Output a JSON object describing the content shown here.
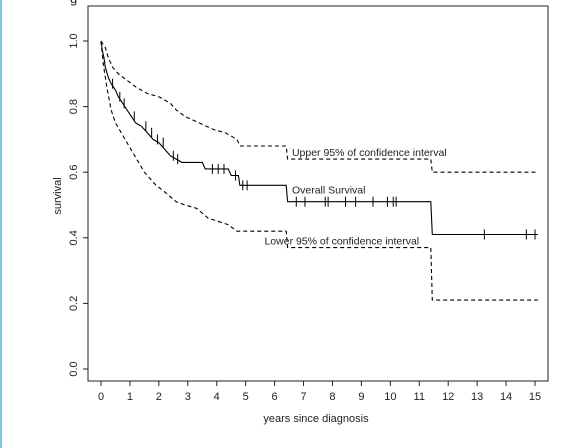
{
  "page": {
    "top_cut_text": "g"
  },
  "chart_data": {
    "type": "line",
    "title": "",
    "xlabel": "years since diagnosis",
    "ylabel": "survival",
    "xlim": [
      0,
      15
    ],
    "ylim": [
      0,
      1
    ],
    "x_ticks": [
      0,
      1,
      2,
      3,
      4,
      5,
      6,
      7,
      8,
      9,
      10,
      11,
      12,
      13,
      14,
      15
    ],
    "x_tick_labels": [
      "0",
      "1",
      "2",
      "3",
      "4",
      "5",
      "6",
      "7",
      "8",
      "9",
      "10",
      "11",
      "12",
      "13",
      "14",
      "15"
    ],
    "y_ticks": [
      0.0,
      0.2,
      0.4,
      0.6,
      0.8,
      1.0
    ],
    "y_tick_labels": [
      "0.0",
      "0.2",
      "0.4",
      "0.6",
      "0.8",
      "1.0"
    ],
    "grid": false,
    "line_color": "#000000",
    "series": [
      {
        "name": "Overall Survival",
        "style": "solid",
        "points": [
          [
            0,
            1.0
          ],
          [
            0.05,
            0.97
          ],
          [
            0.1,
            0.95
          ],
          [
            0.15,
            0.92
          ],
          [
            0.25,
            0.89
          ],
          [
            0.35,
            0.87
          ],
          [
            0.5,
            0.85
          ],
          [
            0.6,
            0.83
          ],
          [
            0.75,
            0.81
          ],
          [
            0.9,
            0.79
          ],
          [
            1.05,
            0.77
          ],
          [
            1.2,
            0.75
          ],
          [
            1.4,
            0.74
          ],
          [
            1.6,
            0.72
          ],
          [
            1.8,
            0.7
          ],
          [
            2.0,
            0.69
          ],
          [
            2.2,
            0.67
          ],
          [
            2.4,
            0.65
          ],
          [
            2.6,
            0.64
          ],
          [
            2.8,
            0.63
          ],
          [
            3.5,
            0.63
          ],
          [
            3.6,
            0.61
          ],
          [
            4.4,
            0.61
          ],
          [
            4.5,
            0.59
          ],
          [
            4.75,
            0.59
          ],
          [
            4.8,
            0.56
          ],
          [
            6.4,
            0.56
          ],
          [
            6.45,
            0.51
          ],
          [
            11.4,
            0.51
          ],
          [
            11.45,
            0.41
          ],
          [
            15.1,
            0.41
          ]
        ],
        "censor_marks": [
          [
            0.4,
            0.87
          ],
          [
            0.65,
            0.83
          ],
          [
            0.8,
            0.81
          ],
          [
            1.15,
            0.77
          ],
          [
            1.55,
            0.74
          ],
          [
            1.75,
            0.72
          ],
          [
            1.95,
            0.7
          ],
          [
            2.15,
            0.69
          ],
          [
            2.5,
            0.65
          ],
          [
            2.65,
            0.64
          ],
          [
            3.85,
            0.61
          ],
          [
            4.05,
            0.61
          ],
          [
            4.25,
            0.61
          ],
          [
            4.65,
            0.59
          ],
          [
            4.9,
            0.56
          ],
          [
            5.05,
            0.56
          ],
          [
            6.75,
            0.51
          ],
          [
            7.05,
            0.51
          ],
          [
            7.75,
            0.51
          ],
          [
            7.85,
            0.51
          ],
          [
            8.45,
            0.51
          ],
          [
            8.8,
            0.51
          ],
          [
            9.4,
            0.51
          ],
          [
            9.9,
            0.51
          ],
          [
            10.1,
            0.51
          ],
          [
            10.2,
            0.51
          ],
          [
            13.25,
            0.41
          ],
          [
            14.7,
            0.41
          ],
          [
            15.0,
            0.41
          ]
        ]
      },
      {
        "name": "Upper 95% of confidence interval",
        "style": "dashed",
        "points": [
          [
            0,
            1.0
          ],
          [
            0.15,
            0.98
          ],
          [
            0.25,
            0.95
          ],
          [
            0.4,
            0.92
          ],
          [
            0.6,
            0.9
          ],
          [
            0.9,
            0.88
          ],
          [
            1.2,
            0.86
          ],
          [
            1.6,
            0.84
          ],
          [
            2.0,
            0.83
          ],
          [
            2.4,
            0.81
          ],
          [
            2.6,
            0.79
          ],
          [
            2.9,
            0.77
          ],
          [
            3.4,
            0.75
          ],
          [
            3.9,
            0.73
          ],
          [
            4.3,
            0.72
          ],
          [
            4.7,
            0.7
          ],
          [
            4.8,
            0.68
          ],
          [
            6.4,
            0.68
          ],
          [
            6.45,
            0.64
          ],
          [
            11.4,
            0.64
          ],
          [
            11.45,
            0.6
          ],
          [
            15.1,
            0.6
          ]
        ]
      },
      {
        "name": "Lower 95% of confidence interval",
        "style": "dashed",
        "points": [
          [
            0,
            1.0
          ],
          [
            0.08,
            0.93
          ],
          [
            0.2,
            0.86
          ],
          [
            0.35,
            0.79
          ],
          [
            0.5,
            0.75
          ],
          [
            0.7,
            0.72
          ],
          [
            0.9,
            0.69
          ],
          [
            1.1,
            0.66
          ],
          [
            1.3,
            0.63
          ],
          [
            1.5,
            0.6
          ],
          [
            1.7,
            0.58
          ],
          [
            1.9,
            0.56
          ],
          [
            2.2,
            0.54
          ],
          [
            2.6,
            0.51
          ],
          [
            2.9,
            0.5
          ],
          [
            3.3,
            0.49
          ],
          [
            3.7,
            0.46
          ],
          [
            4.4,
            0.44
          ],
          [
            4.7,
            0.42
          ],
          [
            6.4,
            0.42
          ],
          [
            6.45,
            0.37
          ],
          [
            11.4,
            0.37
          ],
          [
            11.45,
            0.21
          ],
          [
            15.1,
            0.21
          ]
        ]
      }
    ],
    "annotations": [
      {
        "text": "Upper 95% of confidence interval",
        "x": 6.6,
        "y": 0.65
      },
      {
        "text": "Overall Survival",
        "x": 6.6,
        "y": 0.535
      },
      {
        "text": "Lower 95% of confidence interval",
        "x": 5.65,
        "y": 0.38
      }
    ]
  }
}
